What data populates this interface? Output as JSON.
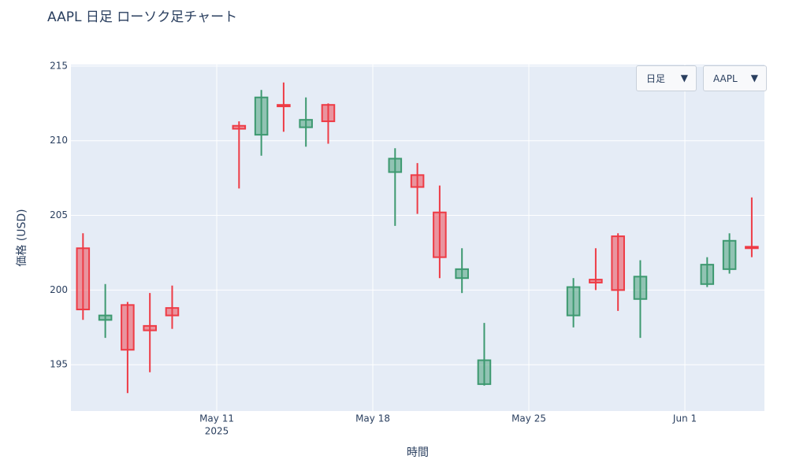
{
  "chart_data": {
    "type": "candlestick",
    "title": "AAPL 日足 ローソク足チャート",
    "x_label": "時間",
    "y_label": "価格 (USD)",
    "x": [
      "2025-05-05",
      "2025-05-06",
      "2025-05-07",
      "2025-05-08",
      "2025-05-09",
      "2025-05-12",
      "2025-05-13",
      "2025-05-14",
      "2025-05-15",
      "2025-05-16",
      "2025-05-19",
      "2025-05-20",
      "2025-05-21",
      "2025-05-22",
      "2025-05-23",
      "2025-05-27",
      "2025-05-28",
      "2025-05-29",
      "2025-05-30",
      "2025-06-02",
      "2025-06-03",
      "2025-06-04"
    ],
    "open": [
      202.8,
      198.0,
      199.0,
      197.6,
      198.8,
      211.0,
      210.4,
      212.4,
      210.9,
      212.4,
      207.9,
      207.7,
      205.2,
      200.8,
      193.7,
      198.3,
      200.7,
      203.6,
      199.4,
      200.4,
      201.4,
      202.9
    ],
    "high": [
      203.8,
      200.4,
      199.2,
      199.8,
      200.3,
      211.3,
      213.4,
      213.9,
      212.9,
      212.5,
      209.5,
      208.5,
      207.0,
      202.8,
      197.8,
      200.8,
      202.8,
      203.8,
      202.0,
      202.2,
      203.8,
      206.2
    ],
    "low": [
      198.0,
      196.8,
      193.1,
      194.5,
      197.4,
      206.8,
      209.0,
      210.6,
      209.6,
      209.8,
      204.3,
      205.1,
      200.8,
      199.8,
      193.6,
      197.5,
      200.0,
      198.6,
      196.8,
      200.2,
      201.1,
      202.2
    ],
    "close": [
      198.7,
      198.3,
      196.0,
      197.3,
      198.3,
      210.8,
      212.9,
      212.3,
      211.4,
      211.3,
      208.8,
      206.9,
      202.2,
      201.4,
      195.3,
      200.2,
      200.5,
      200.0,
      200.9,
      201.7,
      203.3,
      202.8
    ],
    "increasing_color": "#3d9970",
    "decreasing_color": "#ee3b45",
    "plot_bgcolor": "#e5ecf6",
    "grid": true,
    "xlim": [
      "2025-05-04T11:00:00Z",
      "2025-06-04T13:40:00Z"
    ],
    "xticks": [
      {
        "value": "2025-05-11",
        "label": "May 11"
      },
      {
        "value": "2025-05-18",
        "label": "May 18"
      },
      {
        "value": "2025-05-25",
        "label": "May 25"
      },
      {
        "value": "2025-06-01",
        "label": "Jun 1"
      }
    ],
    "xtick_year": "2025",
    "ylim": [
      191.9,
      215.1
    ],
    "yticks": [
      195,
      200,
      205,
      210,
      215
    ]
  },
  "controls": [
    {
      "label": "日足"
    },
    {
      "label": "AAPL"
    }
  ]
}
